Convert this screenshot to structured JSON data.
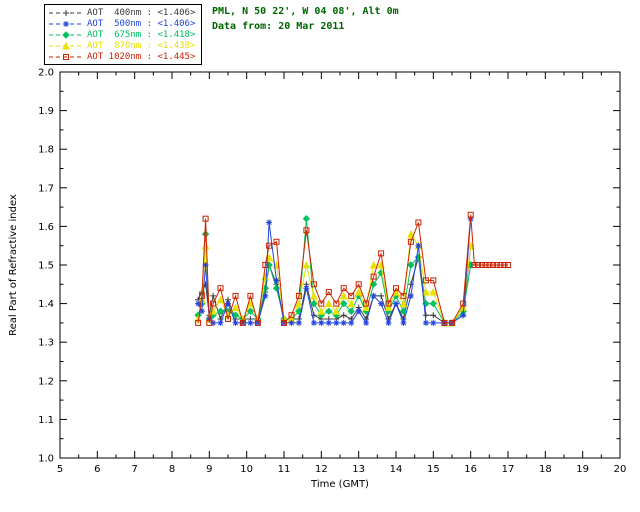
{
  "header": {
    "line1": "PML, N 50 22', W 04 08', Alt 0m",
    "line2": "Data from: 20 Mar 2011",
    "color": "#006400"
  },
  "legend": {
    "entries": [
      {
        "label": "AOT  400nm : <1.406>",
        "color": "#3a3a3a",
        "marker": "plus"
      },
      {
        "label": "AOT  500nm : <1.406>",
        "color": "#2244dd",
        "marker": "asterisk"
      },
      {
        "label": "AOT  675nm : <1.418>",
        "color": "#00c060",
        "marker": "diamond"
      },
      {
        "label": "AOT  870nm : <1.438>",
        "color": "#e6e200",
        "marker": "triangle"
      },
      {
        "label": "AOT 1020nm : <1.445>",
        "color": "#cc2200",
        "marker": "square"
      }
    ]
  },
  "chart_data": {
    "type": "line",
    "title": "",
    "xlabel": "Time (GMT)",
    "ylabel": "Real Part of Refractive index",
    "xlim": [
      5,
      20
    ],
    "ylim": [
      1.0,
      2.0
    ],
    "xticks": [
      5,
      6,
      7,
      8,
      9,
      10,
      11,
      12,
      13,
      14,
      15,
      16,
      17,
      18,
      19,
      20
    ],
    "yticks": [
      1.0,
      1.1,
      1.2,
      1.3,
      1.4,
      1.5,
      1.6,
      1.7,
      1.8,
      1.9,
      2.0
    ],
    "grid": false,
    "legend_position": "top-left",
    "x": [
      8.7,
      8.8,
      8.9,
      9.0,
      9.1,
      9.3,
      9.5,
      9.7,
      9.9,
      10.1,
      10.3,
      10.5,
      10.6,
      10.8,
      11.0,
      11.2,
      11.4,
      11.6,
      11.8,
      12.0,
      12.2,
      12.4,
      12.6,
      12.8,
      13.0,
      13.2,
      13.4,
      13.6,
      13.8,
      14.0,
      14.2,
      14.4,
      14.6,
      14.8,
      15.0,
      15.3,
      15.5,
      15.8,
      16.0,
      16.1,
      16.2,
      16.3,
      16.4,
      16.5,
      16.6,
      16.7,
      16.8,
      16.9,
      17.0
    ],
    "series": [
      {
        "name": "AOT 400nm",
        "mean": "<1.406>",
        "color": "#3a3a3a",
        "marker": "plus",
        "values": [
          1.41,
          1.43,
          1.45,
          1.37,
          1.42,
          1.36,
          1.41,
          1.36,
          1.36,
          1.36,
          1.36,
          1.43,
          1.5,
          1.45,
          1.36,
          1.36,
          1.36,
          1.45,
          1.37,
          1.36,
          1.36,
          1.36,
          1.37,
          1.36,
          1.39,
          1.36,
          1.42,
          1.42,
          1.36,
          1.4,
          1.36,
          1.45,
          1.52,
          1.37,
          1.37,
          1.35,
          1.35,
          1.37,
          1.55,
          null,
          null,
          null,
          null,
          null,
          null,
          null,
          null,
          null,
          null
        ]
      },
      {
        "name": "AOT 675nm",
        "mean": "<1.418>",
        "color": "#00c060",
        "marker": "diamond",
        "values": [
          1.37,
          1.4,
          1.58,
          1.36,
          1.37,
          1.38,
          1.38,
          1.37,
          1.36,
          1.38,
          1.36,
          1.44,
          1.5,
          1.44,
          1.36,
          1.36,
          1.38,
          1.62,
          1.4,
          1.37,
          1.38,
          1.37,
          1.4,
          1.38,
          1.42,
          1.38,
          1.45,
          1.48,
          1.38,
          1.42,
          1.38,
          1.5,
          1.52,
          1.4,
          1.4,
          1.35,
          1.35,
          1.38,
          1.5,
          null,
          null,
          null,
          null,
          null,
          null,
          null,
          null,
          null,
          null
        ]
      },
      {
        "name": "AOT 870nm",
        "mean": "<1.438>",
        "color": "#e6e200",
        "marker": "triangle",
        "values": [
          1.36,
          1.41,
          1.55,
          1.36,
          1.38,
          1.41,
          1.37,
          1.39,
          1.36,
          1.4,
          1.36,
          1.47,
          1.52,
          1.5,
          1.36,
          1.36,
          1.4,
          1.5,
          1.42,
          1.38,
          1.4,
          1.38,
          1.42,
          1.4,
          1.43,
          1.39,
          1.5,
          1.5,
          1.39,
          1.43,
          1.4,
          1.58,
          1.55,
          1.43,
          1.43,
          1.35,
          1.35,
          1.39,
          1.55,
          null,
          null,
          null,
          null,
          null,
          null,
          null,
          null,
          null,
          null
        ]
      },
      {
        "name": "AOT 500nm",
        "mean": "<1.406>",
        "color": "#2244dd",
        "marker": "asterisk",
        "values": [
          1.4,
          1.38,
          1.5,
          1.36,
          1.35,
          1.35,
          1.4,
          1.35,
          1.35,
          1.35,
          1.35,
          1.42,
          1.61,
          1.46,
          1.35,
          1.35,
          1.35,
          1.44,
          1.35,
          1.35,
          1.35,
          1.35,
          1.35,
          1.35,
          1.38,
          1.35,
          1.42,
          1.4,
          1.35,
          1.4,
          1.35,
          1.42,
          1.55,
          1.35,
          1.35,
          1.35,
          1.35,
          1.37,
          1.62,
          null,
          null,
          null,
          null,
          null,
          null,
          null,
          null,
          null,
          null
        ]
      },
      {
        "name": "AOT 1020nm",
        "mean": "<1.445>",
        "color": "#cc2200",
        "marker": "square",
        "values": [
          1.35,
          1.42,
          1.62,
          1.35,
          1.4,
          1.44,
          1.36,
          1.42,
          1.35,
          1.42,
          1.35,
          1.5,
          1.55,
          1.56,
          1.35,
          1.37,
          1.42,
          1.59,
          1.45,
          1.4,
          1.43,
          1.4,
          1.44,
          1.42,
          1.45,
          1.4,
          1.47,
          1.53,
          1.4,
          1.44,
          1.42,
          1.56,
          1.61,
          1.46,
          1.46,
          1.35,
          1.35,
          1.4,
          1.63,
          1.5,
          1.5,
          1.5,
          1.5,
          1.5,
          1.5,
          1.5,
          1.5,
          1.5,
          1.5
        ]
      }
    ]
  }
}
